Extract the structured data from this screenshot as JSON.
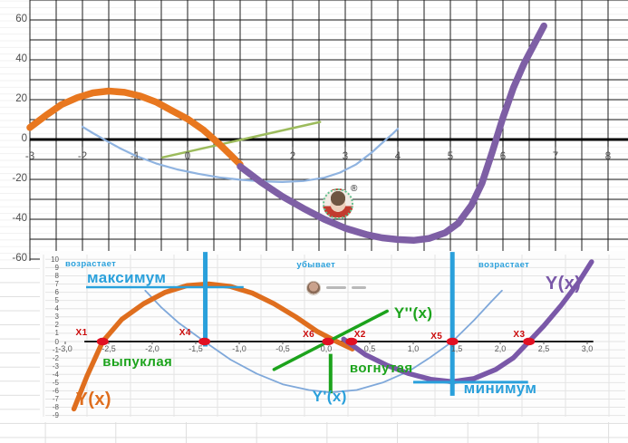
{
  "page": {
    "kind": "worksheet with two embedded function-analysis charts",
    "language": "ru"
  },
  "watermarks": {
    "top_chart_avatar": {
      "registered_symbol": "®"
    },
    "bottom_chart_author": {
      "text_legible": false
    }
  },
  "chart_data": [
    {
      "id": "top",
      "type": "line",
      "title": "",
      "xlabel": "",
      "ylabel": "",
      "xlim": [
        -3,
        8.5
      ],
      "ylim": [
        -60,
        70
      ],
      "x_grid_step": 0.5,
      "y_grid_step": 10,
      "grid": {
        "color": "#1b1b1b",
        "width": 1
      },
      "axis_line": {
        "y": 0,
        "x1": -3,
        "x2": 8.45,
        "width": 3,
        "color": "#000000"
      },
      "axis_ticks": {
        "values": [
          -3,
          -2,
          -1,
          0,
          1,
          2,
          3,
          4,
          5,
          6,
          7,
          8
        ],
        "len": 8,
        "color": "#000000"
      },
      "x_tick_labels": [
        {
          "v": -3,
          "t": "-3"
        },
        {
          "v": -2,
          "t": "-2"
        },
        {
          "v": -1,
          "t": "-1"
        },
        {
          "v": 0,
          "t": "0"
        },
        {
          "v": 1,
          "t": "1"
        },
        {
          "v": 2,
          "t": "2"
        },
        {
          "v": 3,
          "t": "3"
        },
        {
          "v": 4,
          "t": "4"
        },
        {
          "v": 5,
          "t": "5"
        },
        {
          "v": 6,
          "t": "6"
        },
        {
          "v": 7,
          "t": "7"
        },
        {
          "v": 8,
          "t": "8"
        }
      ],
      "y_tick_labels": [
        {
          "v": 60,
          "t": "60"
        },
        {
          "v": 40,
          "t": "40"
        },
        {
          "v": 20,
          "t": "20"
        },
        {
          "v": 0,
          "t": "0"
        },
        {
          "v": -20,
          "t": "-20"
        },
        {
          "v": -40,
          "t": "-40"
        },
        {
          "v": -60,
          "t": "-60"
        }
      ],
      "series": [
        {
          "name": "Y'(x) derivative parabola (light blue)",
          "color": "#8FB3E0",
          "width": 2.2,
          "points": [
            [
              -2,
              6.4
            ],
            [
              -1.8,
              3.2
            ],
            [
              -1.6,
              0.2
            ],
            [
              -1.3,
              -4.2
            ],
            [
              -1,
              -8
            ],
            [
              -0.6,
              -12
            ],
            [
              -0.2,
              -15
            ],
            [
              0.2,
              -17.2
            ],
            [
              0.6,
              -19
            ],
            [
              1,
              -20.2
            ],
            [
              1.4,
              -21
            ],
            [
              1.8,
              -21.3
            ],
            [
              2.2,
              -20.8
            ],
            [
              2.6,
              -19.2
            ],
            [
              2.9,
              -16.6
            ],
            [
              3.2,
              -12.6
            ],
            [
              3.5,
              -6.6
            ],
            [
              3.75,
              -0.6
            ],
            [
              3.9,
              2.8
            ],
            [
              4,
              5.4
            ]
          ]
        },
        {
          "name": "Y''(x) second-derivative line (olive green)",
          "color": "#9CBB5C",
          "width": 2.5,
          "points": [
            [
              -0.48,
              -9
            ],
            [
              2.52,
              8.8
            ]
          ]
        },
        {
          "name": "Y(x) left branch (orange)",
          "color": "#E8771F",
          "width": 7.5,
          "points": [
            [
              -3,
              6
            ],
            [
              -2.7,
              12
            ],
            [
              -2.4,
              17.5
            ],
            [
              -2.1,
              21
            ],
            [
              -1.8,
              23.4
            ],
            [
              -1.5,
              24.3
            ],
            [
              -1.2,
              23.7
            ],
            [
              -0.9,
              21.8
            ],
            [
              -0.6,
              18.8
            ],
            [
              -0.3,
              14.5
            ],
            [
              0,
              10.3
            ],
            [
              0.3,
              4.8
            ],
            [
              0.6,
              -2.2
            ],
            [
              0.8,
              -7.3
            ],
            [
              1,
              -12.5
            ]
          ]
        },
        {
          "name": "Y(x) right branch (purple)",
          "color": "#7E5FA5",
          "width": 7.5,
          "points": [
            [
              1,
              -13.5
            ],
            [
              1.4,
              -21.5
            ],
            [
              1.8,
              -28.5
            ],
            [
              2.2,
              -34.5
            ],
            [
              2.6,
              -40
            ],
            [
              3,
              -44.5
            ],
            [
              3.4,
              -47.7
            ],
            [
              3.7,
              -49.3
            ],
            [
              4,
              -50.2
            ],
            [
              4.3,
              -50.6
            ],
            [
              4.6,
              -49.6
            ],
            [
              4.9,
              -46.8
            ],
            [
              5.15,
              -42
            ],
            [
              5.4,
              -33
            ],
            [
              5.6,
              -22
            ],
            [
              5.8,
              -6
            ],
            [
              6,
              11
            ],
            [
              6.2,
              26
            ],
            [
              6.4,
              38
            ],
            [
              6.6,
              48
            ],
            [
              6.78,
              57
            ]
          ]
        }
      ],
      "guide_lines": [],
      "markers": [],
      "annotations": []
    },
    {
      "id": "bottom",
      "type": "line",
      "title": "",
      "xlabel": "",
      "ylabel": "",
      "xlim": [
        -3.25,
        3.25
      ],
      "ylim": [
        -9,
        10
      ],
      "x_grid_step": 0.5,
      "y_grid_step": 1,
      "grid": {
        "color": "#E4E4E4",
        "width": 1
      },
      "axis_line": {
        "y": 0,
        "x1": -2.78,
        "x2": 3.07,
        "width": 2,
        "color": "#1a1a1a"
      },
      "axis_ticks": {
        "values": [
          -3,
          -2.5,
          -2,
          -1.5,
          -1,
          -0.5,
          0,
          0.5,
          1,
          1.5,
          2,
          2.5,
          3
        ],
        "len": 3,
        "color": "#555555"
      },
      "x_tick_labels": [
        {
          "v": -3,
          "t": "-3,0"
        },
        {
          "v": -2.5,
          "t": "-2,5"
        },
        {
          "v": -2,
          "t": "-2,0"
        },
        {
          "v": -1.5,
          "t": "-1,5"
        },
        {
          "v": -1,
          "t": "-1,0"
        },
        {
          "v": -0.5,
          "t": "-0,5"
        },
        {
          "v": 0,
          "t": "0,0"
        },
        {
          "v": 0.5,
          "t": "0,5"
        },
        {
          "v": 1,
          "t": "1,0"
        },
        {
          "v": 1.5,
          "t": "1,5"
        },
        {
          "v": 2,
          "t": "2,0"
        },
        {
          "v": 2.5,
          "t": "2,5"
        },
        {
          "v": 3,
          "t": "3,0"
        }
      ],
      "y_tick_labels": [
        {
          "v": 10,
          "t": "10"
        },
        {
          "v": 9,
          "t": "9"
        },
        {
          "v": 8,
          "t": "8"
        },
        {
          "v": 7,
          "t": "7"
        },
        {
          "v": 6,
          "t": "6"
        },
        {
          "v": 5,
          "t": "5"
        },
        {
          "v": 4,
          "t": "4"
        },
        {
          "v": 3,
          "t": "3"
        },
        {
          "v": 2,
          "t": "2"
        },
        {
          "v": 1,
          "t": "1"
        },
        {
          "v": 0,
          "t": "0"
        },
        {
          "v": -1,
          "t": "-1"
        },
        {
          "v": -2,
          "t": "-2"
        },
        {
          "v": -3,
          "t": "-3"
        },
        {
          "v": -4,
          "t": "-4"
        },
        {
          "v": -5,
          "t": "-5"
        },
        {
          "v": -6,
          "t": "-6"
        },
        {
          "v": -7,
          "t": "-7"
        },
        {
          "v": -8,
          "t": "-8"
        },
        {
          "v": -9,
          "t": "-9"
        }
      ],
      "series": [
        {
          "name": "Y'(x) derivative parabola (light blue)",
          "color": "#7FA8DA",
          "width": 1.8,
          "points": [
            [
              -2.08,
              6.2
            ],
            [
              -1.9,
              4.2
            ],
            [
              -1.7,
              2.3
            ],
            [
              -1.4,
              0
            ],
            [
              -1.1,
              -2.2
            ],
            [
              -0.8,
              -3.9
            ],
            [
              -0.5,
              -5.2
            ],
            [
              -0.2,
              -5.9
            ],
            [
              0.05,
              -6.2
            ],
            [
              0.35,
              -5.9
            ],
            [
              0.65,
              -5
            ],
            [
              0.95,
              -3.6
            ],
            [
              1.2,
              -1.9
            ],
            [
              1.45,
              0
            ],
            [
              1.7,
              2.6
            ],
            [
              1.9,
              4.9
            ],
            [
              2.02,
              6.2
            ]
          ]
        },
        {
          "name": "Y(x) left branch (orange)",
          "color": "#DF6E1E",
          "width": 5.5,
          "points": [
            [
              -2.9,
              -8.2
            ],
            [
              -2.75,
              -4.2
            ],
            [
              -2.57,
              0
            ],
            [
              -2.35,
              2.7
            ],
            [
              -2.1,
              4.6
            ],
            [
              -1.85,
              6
            ],
            [
              -1.6,
              6.8
            ],
            [
              -1.35,
              7
            ],
            [
              -1.1,
              6.7
            ],
            [
              -0.85,
              5.9
            ],
            [
              -0.6,
              4.6
            ],
            [
              -0.35,
              3
            ],
            [
              -0.1,
              1.2
            ],
            [
              0.1,
              0.1
            ],
            [
              0.3,
              -0.9
            ]
          ]
        },
        {
          "name": "Y(x) right branch (purple)",
          "color": "#7A58A8",
          "width": 5.5,
          "points": [
            [
              0.2,
              0.3
            ],
            [
              0.45,
              -1.6
            ],
            [
              0.7,
              -2.9
            ],
            [
              0.95,
              -3.9
            ],
            [
              1.2,
              -4.6
            ],
            [
              1.45,
              -4.9
            ],
            [
              1.7,
              -4.5
            ],
            [
              1.95,
              -3.4
            ],
            [
              2.15,
              -2
            ],
            [
              2.33,
              0
            ],
            [
              2.5,
              1.9
            ],
            [
              2.7,
              4.4
            ],
            [
              2.9,
              7.2
            ],
            [
              3.05,
              9.7
            ]
          ]
        },
        {
          "name": "Y''(x) second-derivative line (bright green)",
          "color": "#1CA31C",
          "width": 3.5,
          "points": [
            [
              -0.6,
              -3.4
            ],
            [
              0.7,
              3.7
            ]
          ]
        }
      ],
      "guide_lines": [
        {
          "o": "v",
          "x": -1.39,
          "y1": 10.9,
          "y2": -0.6,
          "color": "#2AA0DB",
          "w": 5
        },
        {
          "o": "v",
          "x": 1.45,
          "y1": 10.9,
          "y2": -6.6,
          "color": "#2AA0DB",
          "w": 5
        },
        {
          "o": "v",
          "x": 0.05,
          "y1": -1.5,
          "y2": -6.3,
          "color": "#1CA31C",
          "w": 4
        },
        {
          "o": "h",
          "y": 6.62,
          "x1": -2.76,
          "x2": -0.95,
          "color": "#2AA0DB",
          "w": 2.5
        },
        {
          "o": "h",
          "y": -4.95,
          "x1": 1.0,
          "x2": 2.32,
          "color": "#2AA0DB",
          "w": 3
        }
      ],
      "marker_color": "#E11022",
      "markers": [
        {
          "label": "X1",
          "x": -2.57
        },
        {
          "label": "X4",
          "x": -1.4
        },
        {
          "label": "X6",
          "x": 0.02
        },
        {
          "label": "X2",
          "x": 0.29
        },
        {
          "label": "X5",
          "x": 1.45
        },
        {
          "label": "X3",
          "x": 2.33
        }
      ],
      "annotations": [
        {
          "text": "возрастает",
          "x": -3.0,
          "y": 10.0,
          "color": "#2AA0DB",
          "size": 9.5
        },
        {
          "text": "убывает",
          "x": -0.34,
          "y": 9.9,
          "color": "#2AA0DB",
          "size": 9.5
        },
        {
          "text": "возрастает",
          "x": 1.75,
          "y": 9.9,
          "color": "#2AA0DB",
          "size": 9.5
        },
        {
          "text": "максимум",
          "x": -2.75,
          "y": 8.8,
          "color": "#2AA0DB",
          "size": 17
        },
        {
          "text": "минимум",
          "x": 1.58,
          "y": -4.6,
          "color": "#2AA0DB",
          "size": 17
        },
        {
          "text": "выпуклая",
          "x": -2.57,
          "y": -1.5,
          "color": "#1CA31C",
          "size": 15
        },
        {
          "text": "вогнутая",
          "x": 0.27,
          "y": -2.3,
          "color": "#1CA31C",
          "size": 15
        },
        {
          "text": "Y(x)",
          "x": -2.88,
          "y": -5.8,
          "color": "#DF6E1E",
          "size": 20
        },
        {
          "text": "Y'(x)",
          "x": -0.16,
          "y": -5.6,
          "color": "#2AA0DB",
          "size": 17
        },
        {
          "text": "Y''(x)",
          "x": 0.78,
          "y": 4.5,
          "color": "#1CA31C",
          "size": 17
        },
        {
          "text": "Y(x)",
          "x": 2.52,
          "y": 8.3,
          "color": "#7A58A8",
          "size": 20
        },
        {
          "text": "X1",
          "x": -2.88,
          "y": 1.65,
          "color": "#CB0A0A",
          "size": 10
        },
        {
          "text": "X4",
          "x": -1.69,
          "y": 1.65,
          "color": "#CB0A0A",
          "size": 10
        },
        {
          "text": "X6",
          "x": -0.27,
          "y": 1.43,
          "color": "#CB0A0A",
          "size": 10
        },
        {
          "text": "X2",
          "x": 0.32,
          "y": 1.43,
          "color": "#CB0A0A",
          "size": 10
        },
        {
          "text": "X5",
          "x": 1.2,
          "y": 1.21,
          "color": "#CB0A0A",
          "size": 10
        },
        {
          "text": "X3",
          "x": 2.15,
          "y": 1.43,
          "color": "#CB0A0A",
          "size": 10
        }
      ]
    }
  ]
}
